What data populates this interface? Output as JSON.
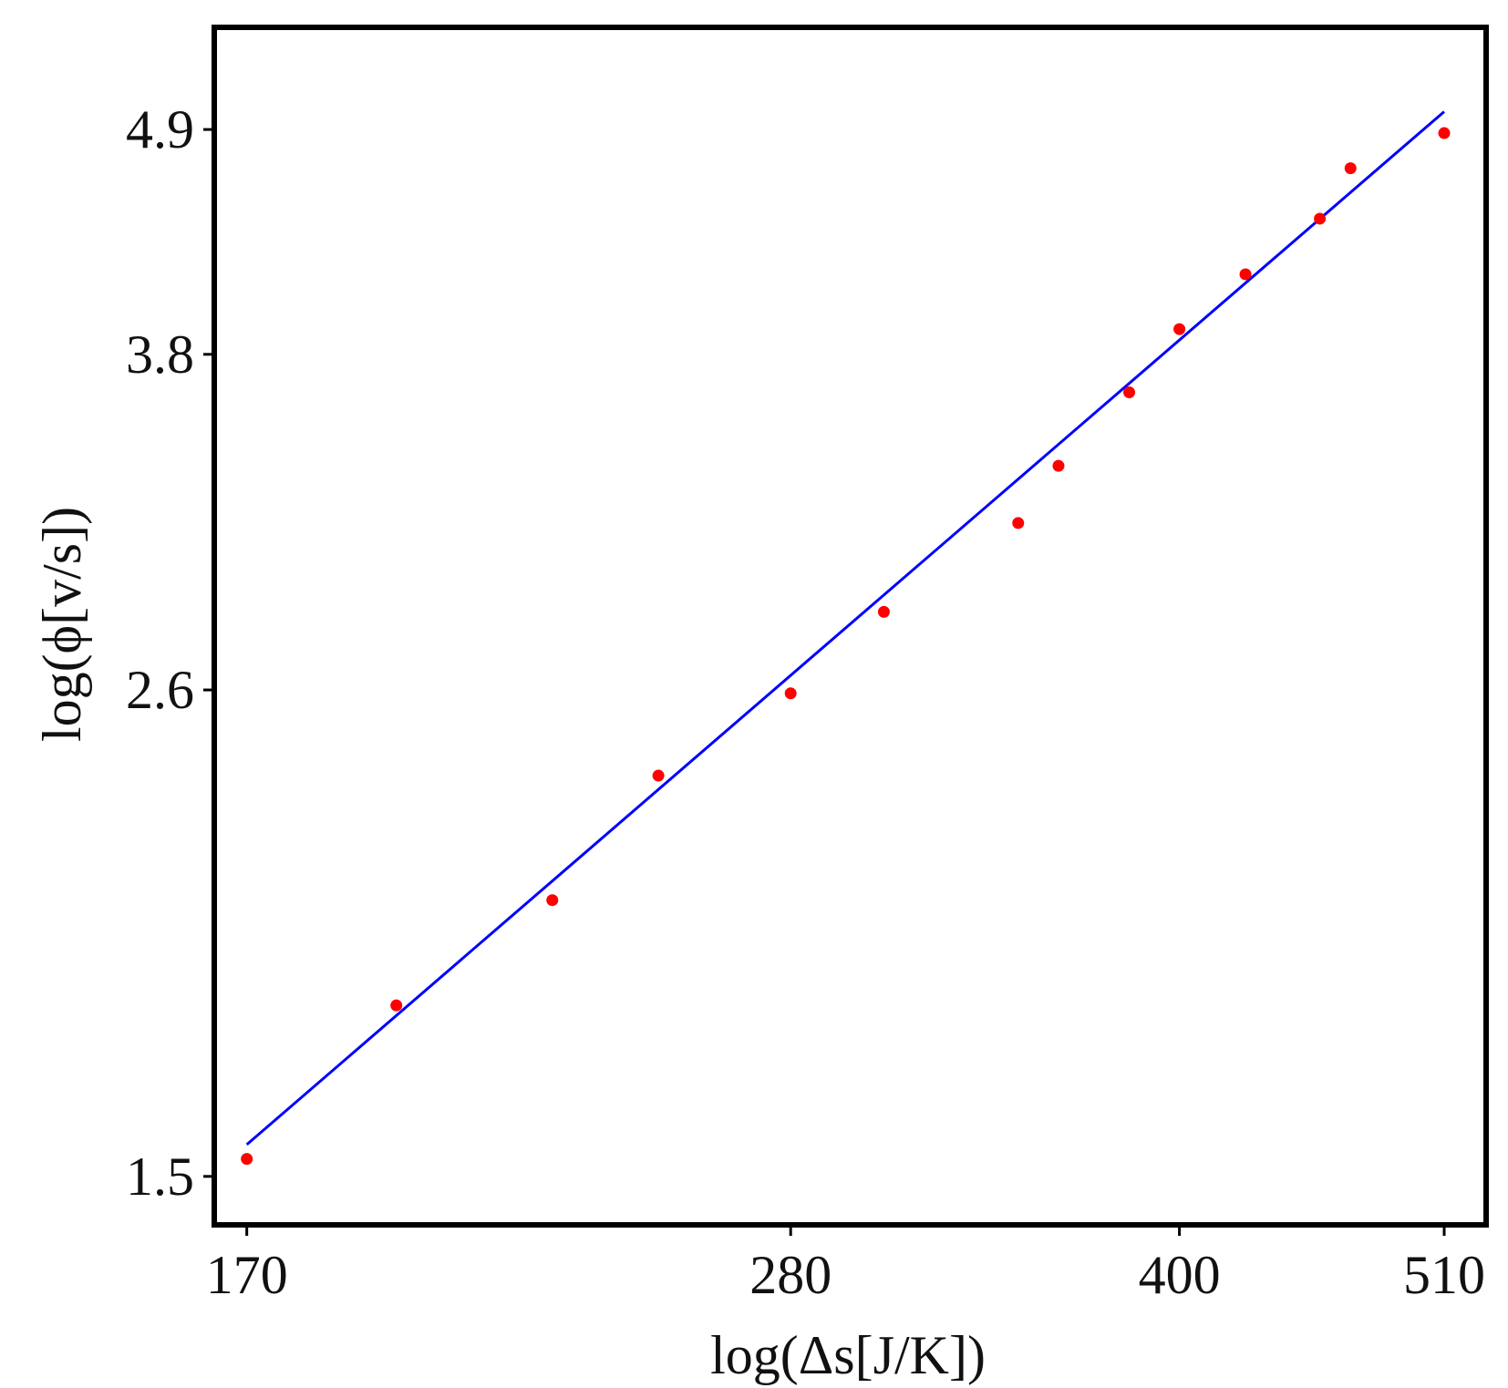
{
  "chart_data": {
    "type": "scatter",
    "xlabel": "log(Δs[J/K])",
    "ylabel": "log(ϕ[v/s])",
    "title": "",
    "x_scale": "log",
    "y_scale": "log",
    "xlim": [
      165,
      530
    ],
    "ylim": [
      1.42,
      5.5
    ],
    "x_ticks": [
      170,
      280,
      400,
      510
    ],
    "y_ticks": [
      1.5,
      2.6,
      3.8,
      4.9
    ],
    "grid": false,
    "legend": "none",
    "series": [
      {
        "kind": "points",
        "color": "#ff0000",
        "x": [
          170,
          195,
          225,
          248,
          280,
          305,
          345,
          358,
          382,
          400,
          425,
          455,
          468,
          510
        ],
        "y": [
          1.53,
          1.82,
          2.05,
          2.36,
          2.59,
          2.84,
          3.14,
          3.35,
          3.64,
          3.91,
          4.16,
          4.43,
          4.69,
          4.88
        ]
      },
      {
        "kind": "fit-line",
        "color": "#0000ff",
        "x": [
          170,
          510
        ],
        "y": [
          1.555,
          5.0
        ]
      }
    ]
  }
}
